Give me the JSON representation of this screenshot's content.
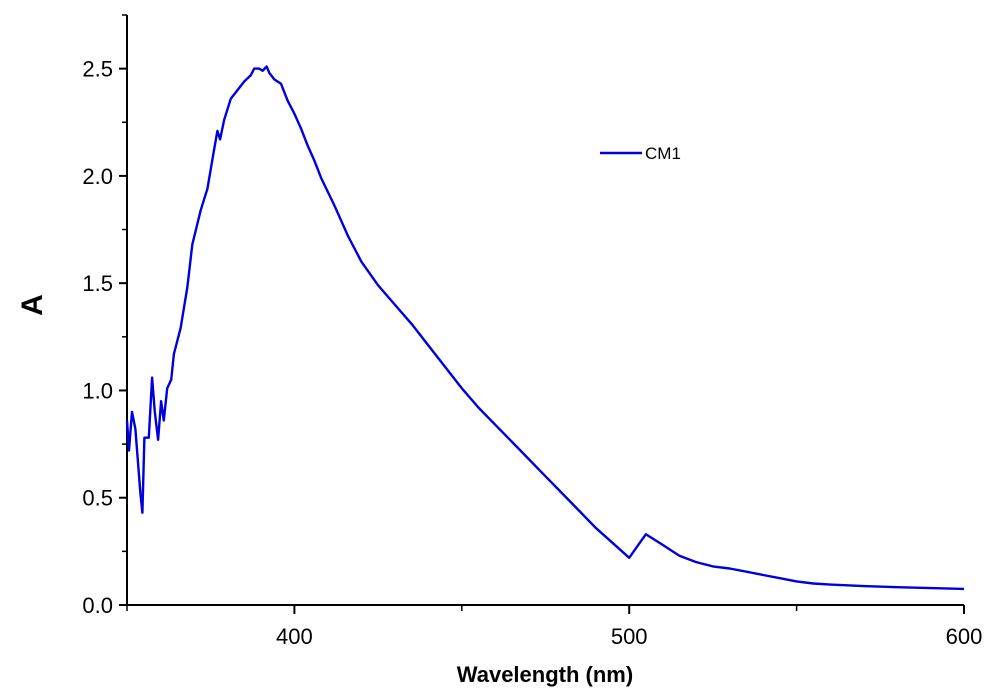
{
  "chart_data": {
    "type": "line",
    "title": "",
    "xlabel": "Wavelength (nm)",
    "ylabel": "A",
    "xlim": [
      350,
      600
    ],
    "ylim": [
      0,
      2.75
    ],
    "x_ticks": [
      400,
      500,
      600
    ],
    "x_minor_ticks": [
      350,
      450,
      550
    ],
    "y_ticks": [
      0.0,
      0.5,
      1.0,
      1.5,
      2.0,
      2.5
    ],
    "y_tick_labels": [
      "0.0",
      "0.5",
      "1.0",
      "1.5",
      "2.0",
      "2.5"
    ],
    "grid": false,
    "legend_position": "top-right",
    "series": [
      {
        "name": "CM1",
        "color": "#0000dd",
        "points": [
          [
            350,
            0.86
          ],
          [
            350.6,
            0.72
          ],
          [
            351.5,
            0.9
          ],
          [
            352.5,
            0.82
          ],
          [
            354,
            0.52
          ],
          [
            354.6,
            0.43
          ],
          [
            355.2,
            0.78
          ],
          [
            356.5,
            0.78
          ],
          [
            357.5,
            1.06
          ],
          [
            358.3,
            0.9
          ],
          [
            359.3,
            0.77
          ],
          [
            360.2,
            0.95
          ],
          [
            361,
            0.86
          ],
          [
            362,
            1.01
          ],
          [
            363.2,
            1.05
          ],
          [
            364,
            1.17
          ],
          [
            366,
            1.29
          ],
          [
            368,
            1.48
          ],
          [
            369.5,
            1.68
          ],
          [
            372,
            1.84
          ],
          [
            374,
            1.94
          ],
          [
            376,
            2.12
          ],
          [
            377,
            2.21
          ],
          [
            377.8,
            2.17
          ],
          [
            379,
            2.26
          ],
          [
            381,
            2.36
          ],
          [
            383,
            2.4
          ],
          [
            385,
            2.44
          ],
          [
            387,
            2.47
          ],
          [
            388,
            2.5
          ],
          [
            389.5,
            2.5
          ],
          [
            390.5,
            2.49
          ],
          [
            391.7,
            2.51
          ],
          [
            392.5,
            2.48
          ],
          [
            394,
            2.45
          ],
          [
            396,
            2.43
          ],
          [
            398,
            2.35
          ],
          [
            400,
            2.29
          ],
          [
            402,
            2.22
          ],
          [
            404,
            2.14
          ],
          [
            406,
            2.07
          ],
          [
            408,
            1.99
          ],
          [
            412,
            1.86
          ],
          [
            416,
            1.72
          ],
          [
            420,
            1.6
          ],
          [
            425,
            1.49
          ],
          [
            430,
            1.4
          ],
          [
            435,
            1.31
          ],
          [
            440,
            1.21
          ],
          [
            445,
            1.11
          ],
          [
            450,
            1.01
          ],
          [
            455,
            0.92
          ],
          [
            460,
            0.84
          ],
          [
            465,
            0.76
          ],
          [
            470,
            0.68
          ],
          [
            475,
            0.6
          ],
          [
            480,
            0.52
          ],
          [
            485,
            0.44
          ],
          [
            490,
            0.36
          ],
          [
            495,
            0.29
          ],
          [
            500,
            0.22
          ],
          [
            505,
            0.33
          ],
          [
            510,
            0.28
          ],
          [
            515,
            0.23
          ],
          [
            520,
            0.2
          ],
          [
            525,
            0.18
          ],
          [
            530,
            0.17
          ],
          [
            535,
            0.155
          ],
          [
            540,
            0.14
          ],
          [
            545,
            0.125
          ],
          [
            550,
            0.11
          ],
          [
            555,
            0.1
          ],
          [
            560,
            0.095
          ],
          [
            570,
            0.088
          ],
          [
            580,
            0.083
          ],
          [
            590,
            0.079
          ],
          [
            600,
            0.075
          ]
        ]
      }
    ]
  }
}
